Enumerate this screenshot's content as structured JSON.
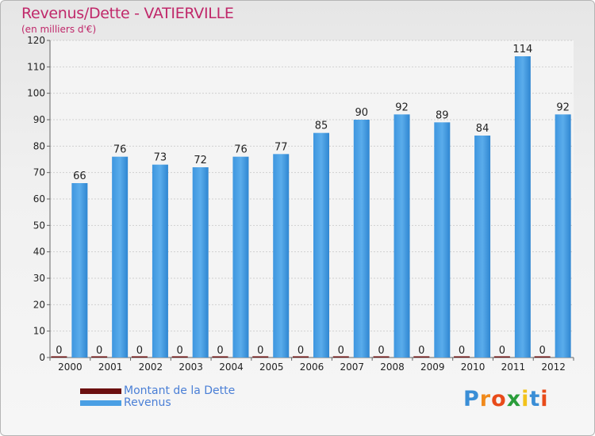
{
  "header": {
    "title": "Revenus/Dette - VATIERVILLE",
    "subtitle": "(en milliers d'€)"
  },
  "colors": {
    "debt": "#6b0f0f",
    "revenue": "#4a9fe4",
    "revenue_dark": "#2f86d1",
    "title": "#c0286a",
    "legend_text": "#4a7fd6"
  },
  "legend": {
    "items": [
      {
        "label": "Montant de la Dette",
        "color": "#6b0f0f"
      },
      {
        "label": "Revenus",
        "color": "#4a9fe4"
      }
    ]
  },
  "logo": {
    "letters": [
      {
        "ch": "P",
        "color": "#3a8ed6"
      },
      {
        "ch": "r",
        "color": "#f08a1c"
      },
      {
        "ch": "o",
        "color": "#e84b1a"
      },
      {
        "ch": "x",
        "color": "#2a9d3a"
      },
      {
        "ch": "i",
        "color": "#f2c21b"
      },
      {
        "ch": "t",
        "color": "#3a8ed6"
      },
      {
        "ch": "i",
        "color": "#e84b1a"
      }
    ]
  },
  "chart_data": {
    "type": "bar",
    "title": "Revenus/Dette - VATIERVILLE",
    "subtitle": "(en milliers d'€)",
    "categories": [
      "2000",
      "2001",
      "2002",
      "2003",
      "2004",
      "2005",
      "2006",
      "2007",
      "2008",
      "2009",
      "2010",
      "2011",
      "2012"
    ],
    "series": [
      {
        "name": "Montant de la Dette",
        "color": "#6b0f0f",
        "values": [
          0,
          0,
          0,
          0,
          0,
          0,
          0,
          0,
          0,
          0,
          0,
          0,
          0
        ]
      },
      {
        "name": "Revenus",
        "color": "#4a9fe4",
        "values": [
          66,
          76,
          73,
          72,
          76,
          77,
          85,
          90,
          92,
          89,
          84,
          114,
          92
        ]
      }
    ],
    "ylim": [
      0,
      120
    ],
    "yticks": [
      0,
      10,
      20,
      30,
      40,
      50,
      60,
      70,
      80,
      90,
      100,
      110,
      120
    ],
    "grid": true,
    "legend_position": "bottom-left"
  }
}
